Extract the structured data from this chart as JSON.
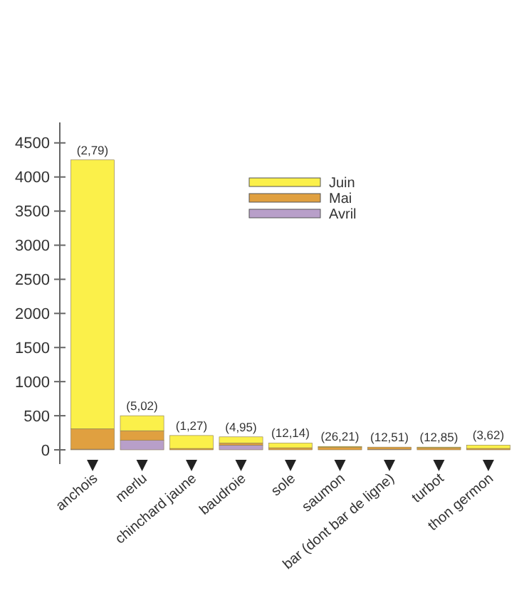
{
  "chart_data": {
    "type": "bar",
    "stacked": true,
    "categories": [
      "anchois",
      "merlu",
      "chinchard jaune",
      "baudroie",
      "sole",
      "saumon",
      "bar (dont bar de ligne)",
      "turbot",
      "thon germon"
    ],
    "series": [
      {
        "name": "Avril",
        "color": "#b89fc9",
        "values": [
          10,
          140,
          0,
          70,
          0,
          0,
          10,
          0,
          0
        ]
      },
      {
        "name": "Mai",
        "color": "#e0a040",
        "values": [
          300,
          140,
          20,
          30,
          30,
          40,
          30,
          30,
          20
        ]
      },
      {
        "name": "Juin",
        "color": "#fbf04a",
        "values": [
          3940,
          220,
          190,
          90,
          70,
          10,
          0,
          10,
          50
        ]
      }
    ],
    "ylim": [
      0,
      4800
    ],
    "yticks": [
      0,
      500,
      1000,
      1500,
      2000,
      2500,
      3000,
      3500,
      4000,
      4500
    ],
    "legend": "top right",
    "annotations": [
      {
        "text": "(2,79)",
        "x": "anchois",
        "y": 4250
      },
      {
        "text": "(5,02)",
        "x": "merlu",
        "y": 500
      },
      {
        "text": "(1,27)",
        "x": "chinchard jaune",
        "y": 210
      },
      {
        "text": "(4,95)",
        "x": "baudroie",
        "y": 190
      },
      {
        "text": "(12,14)",
        "x": "sole",
        "y": 100
      },
      {
        "text": "(26,21)",
        "x": "saumon",
        "y": 55
      },
      {
        "text": "(12,51)",
        "x": "bar (dont bar de ligne)",
        "y": 40
      },
      {
        "text": "(12,85)",
        "x": "turbot",
        "y": 40
      },
      {
        "text": "(3,62)",
        "x": "thon germon",
        "y": 75
      }
    ]
  }
}
